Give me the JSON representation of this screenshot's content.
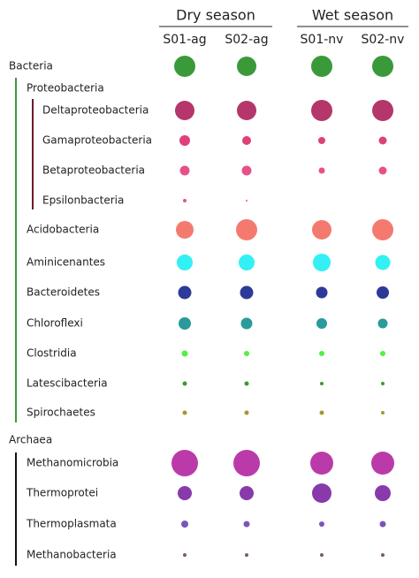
{
  "chart_data": {
    "type": "bubble-matrix",
    "groups": [
      {
        "name": "Dry season",
        "columns": [
          "S01-ag",
          "S02-ag"
        ]
      },
      {
        "name": "Wet season",
        "columns": [
          "S01-nv",
          "S02-nv"
        ]
      }
    ],
    "rows": [
      {
        "name": "Bacteria",
        "level": 0,
        "color": "#3a9a3a",
        "values": [
          24,
          22,
          24,
          24
        ]
      },
      {
        "name": "Proteobacteria",
        "level": 1,
        "color": null,
        "values": [
          null,
          null,
          null,
          null
        ]
      },
      {
        "name": "Deltaproteobacteria",
        "level": 2,
        "color": "#b5366a",
        "values": [
          22,
          22,
          24,
          24
        ]
      },
      {
        "name": "Gamaproteobacteria",
        "level": 2,
        "color": "#e0407a",
        "values": [
          12,
          10,
          8,
          9
        ]
      },
      {
        "name": "Betaproteobacteria",
        "level": 2,
        "color": "#e8508a",
        "values": [
          11,
          11,
          7,
          9
        ]
      },
      {
        "name": "Epsilonbacteria",
        "level": 2,
        "color": "#e8508a",
        "values": [
          4,
          2,
          null,
          null
        ]
      },
      {
        "name": "Acidobacteria",
        "level": 1,
        "color": "#f47a70",
        "values": [
          20,
          24,
          22,
          24
        ]
      },
      {
        "name": "Aminicenantes",
        "level": 1,
        "color": "#33f0f5",
        "values": [
          18,
          18,
          20,
          17
        ]
      },
      {
        "name": "Bacteroidetes",
        "level": 1,
        "color": "#2e3a9a",
        "values": [
          15,
          15,
          13,
          14
        ]
      },
      {
        "name": "Chloroflexi",
        "level": 1,
        "color": "#2a9a9a",
        "values": [
          14,
          13,
          12,
          11
        ]
      },
      {
        "name": "Clostridia",
        "level": 1,
        "color": "#55ee44",
        "values": [
          7,
          6,
          6,
          6
        ]
      },
      {
        "name": "Latescibacteria",
        "level": 1,
        "color": "#3a9a2a",
        "values": [
          5,
          5,
          4,
          4
        ]
      },
      {
        "name": "Spirochaetes",
        "level": 1,
        "color": "#a09a2a",
        "values": [
          5,
          5,
          5,
          4
        ]
      },
      {
        "name": "Archaea",
        "level": 0,
        "color": null,
        "values": [
          null,
          null,
          null,
          null
        ]
      },
      {
        "name": "Methanomicrobia",
        "level": 1,
        "color": "#bb3aaa",
        "values": [
          30,
          30,
          26,
          26
        ]
      },
      {
        "name": "Thermoprotei",
        "level": 1,
        "color": "#883aaa",
        "values": [
          16,
          16,
          22,
          18
        ]
      },
      {
        "name": "Thermoplasmata",
        "level": 1,
        "color": "#7a55bb",
        "values": [
          8,
          7,
          6,
          7
        ]
      },
      {
        "name": "Methanobacteria",
        "level": 1,
        "color": "#7a5a6a",
        "values": [
          4,
          4,
          4,
          4
        ]
      }
    ]
  }
}
